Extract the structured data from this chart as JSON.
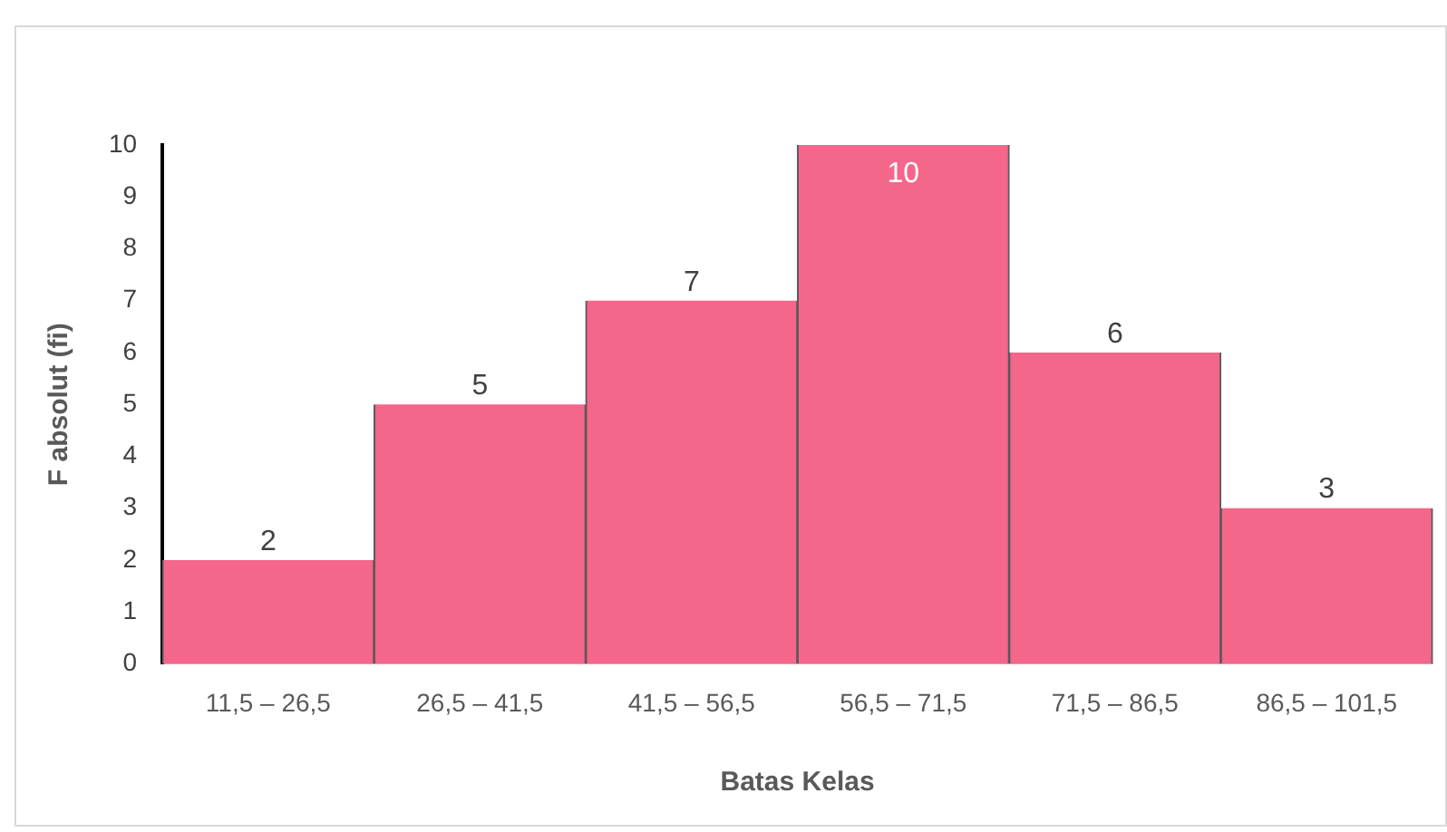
{
  "chart_data": {
    "type": "bar",
    "xlabel": "Batas Kelas",
    "ylabel": "F absolut (fi)",
    "categories": [
      "11,5 – 26,5",
      "26,5 – 41,5",
      "41,5 – 56,5",
      "56,5 – 71,5",
      "71,5 – 86,5",
      "86,5 – 101,5"
    ],
    "values": [
      2,
      5,
      7,
      10,
      6,
      3
    ],
    "color": "#f4668a",
    "ylim": [
      0,
      10
    ],
    "yticks": [
      0,
      1,
      2,
      3,
      4,
      5,
      6,
      7,
      8,
      9,
      10
    ],
    "grid": false,
    "legend": false,
    "data_labels": true
  }
}
